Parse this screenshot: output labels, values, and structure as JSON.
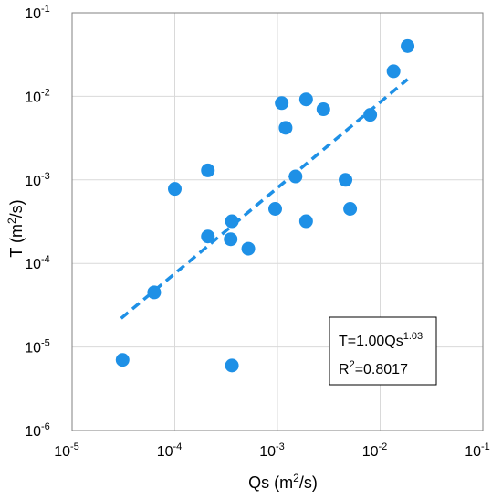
{
  "chart_data": {
    "type": "scatter",
    "xscale": "log",
    "yscale": "log",
    "xlim": [
      1e-05,
      0.1
    ],
    "ylim": [
      1e-06,
      0.1
    ],
    "grid": true,
    "xlabel": {
      "base": "Qs (m",
      "sup": "2",
      "tail": "/s)"
    },
    "ylabel": {
      "base": "T (m",
      "sup": "2",
      "tail": "/s)"
    },
    "x_ticks": [
      {
        "value": 1e-05,
        "base": "10",
        "exp": "-5"
      },
      {
        "value": 0.0001,
        "base": "10",
        "exp": "-4"
      },
      {
        "value": 0.001,
        "base": "10",
        "exp": "-3"
      },
      {
        "value": 0.01,
        "base": "10",
        "exp": "-2"
      },
      {
        "value": 0.1,
        "base": "10",
        "exp": "-1"
      }
    ],
    "y_ticks": [
      {
        "value": 1e-06,
        "base": "10",
        "exp": "-6"
      },
      {
        "value": 1e-05,
        "base": "10",
        "exp": "-5"
      },
      {
        "value": 0.0001,
        "base": "10",
        "exp": "-4"
      },
      {
        "value": 0.001,
        "base": "10",
        "exp": "-3"
      },
      {
        "value": 0.01,
        "base": "10",
        "exp": "-2"
      },
      {
        "value": 0.1,
        "base": "10",
        "exp": "-1"
      }
    ],
    "points": [
      {
        "x": 3.1e-05,
        "y": 7e-06
      },
      {
        "x": 6.3e-05,
        "y": 4.5e-05
      },
      {
        "x": 0.0001,
        "y": 0.00078
      },
      {
        "x": 0.00021,
        "y": 0.0013
      },
      {
        "x": 0.00021,
        "y": 0.00021
      },
      {
        "x": 0.00035,
        "y": 0.000195
      },
      {
        "x": 0.00036,
        "y": 0.00032
      },
      {
        "x": 0.00036,
        "y": 6e-06
      },
      {
        "x": 0.00052,
        "y": 0.00015
      },
      {
        "x": 0.00095,
        "y": 0.00045
      },
      {
        "x": 0.0011,
        "y": 0.0083
      },
      {
        "x": 0.0012,
        "y": 0.0042
      },
      {
        "x": 0.0015,
        "y": 0.0011
      },
      {
        "x": 0.0019,
        "y": 0.00032
      },
      {
        "x": 0.0019,
        "y": 0.0092
      },
      {
        "x": 0.0028,
        "y": 0.007
      },
      {
        "x": 0.0046,
        "y": 0.001
      },
      {
        "x": 0.0051,
        "y": 0.00045
      },
      {
        "x": 0.008,
        "y": 0.006
      },
      {
        "x": 0.0135,
        "y": 0.02
      },
      {
        "x": 0.0185,
        "y": 0.04
      }
    ],
    "fit_line": {
      "x": [
        3e-05,
        0.0185
      ],
      "y": [
        2.2e-05,
        0.016
      ]
    },
    "annotation": {
      "line1": {
        "base": "T=1.00Qs",
        "sup": "1.03"
      },
      "line2": {
        "base": "R",
        "sup": "2",
        "tail": "=0.8017"
      }
    },
    "colors": {
      "points": "#1e90e6",
      "fit_line": "#1e90e6",
      "grid": "#d9d9d9",
      "axis": "#808080"
    }
  }
}
